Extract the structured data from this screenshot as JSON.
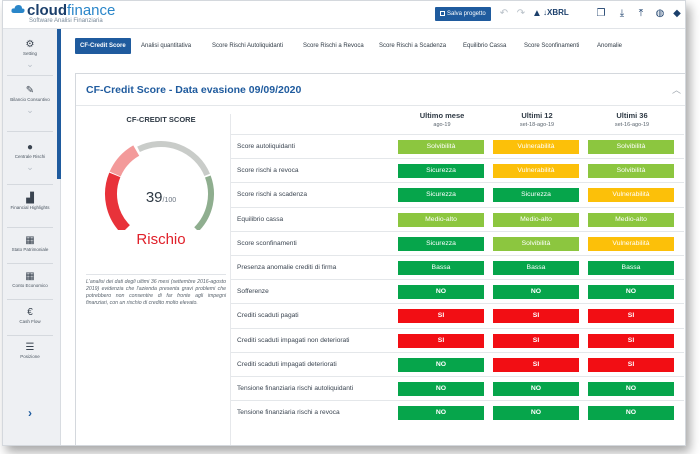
{
  "app": {
    "logo_bold": "cloud",
    "logo_light": "finance",
    "logo_sub": "Software Analisi Finanziaria"
  },
  "toolbar": {
    "save_label": "Salva progetto",
    "xbrl_label": "XBRL",
    "icons": [
      "undo-icon",
      "redo-icon",
      "warning-icon",
      "xbrl-icon",
      "copy-icon",
      "download-icon",
      "upload-icon",
      "globe-icon",
      "tag-icon"
    ]
  },
  "sidebar": {
    "items": [
      {
        "label": "Setting",
        "icon": "gears-icon"
      },
      {
        "label": "Bilancio Consuntivo",
        "icon": "pencil-icon"
      },
      {
        "label": "Centrale Rischi",
        "icon": "alert-icon"
      },
      {
        "label": "Financial Highlights",
        "icon": "bar-chart-icon"
      },
      {
        "label": "Stato Patrimoniale",
        "icon": "table-icon"
      },
      {
        "label": "Conto Economico",
        "icon": "table-icon"
      },
      {
        "label": "Cash Flow",
        "icon": "euro-icon"
      },
      {
        "label": "Posizione",
        "icon": "list-icon"
      }
    ]
  },
  "tabs": [
    {
      "label": "CF-Credit Score",
      "active": true
    },
    {
      "label": "Analisi quantitativa"
    },
    {
      "label": "Score Rischi Autoliquidanti"
    },
    {
      "label": "Score Rischi a Revoca"
    },
    {
      "label": "Score Rischi a Scadenza"
    },
    {
      "label": "Equilibrio Cassa"
    },
    {
      "label": "Score Sconfinamenti"
    },
    {
      "label": "Anomalie"
    }
  ],
  "panel": {
    "title": "CF-Credit Score - Data evasione  09/09/2020"
  },
  "score": {
    "title": "CF-CREDIT SCORE",
    "value": "39",
    "max": "/100",
    "label": "Rischio",
    "level": 39,
    "note": "L'analisi dei dati degli ultimi 36 mesi (settembre 2016-agosto 2019) evidenzia che l'azienda presenta gravi problemi che potrebbero non consentire di far fronte agli impegni finanziari, con un rischio di credito molto elevato."
  },
  "colors": {
    "green": "#06a54b",
    "light_green": "#8cc63f",
    "yellow": "#fcc009",
    "red": "#f20e14",
    "brand": "#1f5b9e"
  },
  "columns": [
    {
      "header": "Ultimo mese",
      "sub": "ago-19"
    },
    {
      "header": "Ultimi 12",
      "sub": "set-18-ago-19"
    },
    {
      "header": "Ultimi 36",
      "sub": "set-16-ago-19"
    }
  ],
  "rows": [
    {
      "label": "Score autoliquidanti",
      "cells": [
        {
          "text": "Solvibilità",
          "color": "#8cc63f"
        },
        {
          "text": "Vulnerabilità",
          "color": "#fcc009"
        },
        {
          "text": "Solvibilità",
          "color": "#8cc63f"
        }
      ]
    },
    {
      "label": "Score rischi a revoca",
      "cells": [
        {
          "text": "Sicurezza",
          "color": "#06a54b"
        },
        {
          "text": "Vulnerabilità",
          "color": "#fcc009"
        },
        {
          "text": "Solvibilità",
          "color": "#8cc63f"
        }
      ]
    },
    {
      "label": "Score rischi a scadenza",
      "cells": [
        {
          "text": "Sicurezza",
          "color": "#06a54b"
        },
        {
          "text": "Sicurezza",
          "color": "#06a54b"
        },
        {
          "text": "Vulnerabilità",
          "color": "#fcc009"
        }
      ]
    },
    {
      "label": "Equilibrio cassa",
      "cells": [
        {
          "text": "Medio-alto",
          "color": "#8cc63f"
        },
        {
          "text": "Medio-alto",
          "color": "#8cc63f"
        },
        {
          "text": "Medio-alto",
          "color": "#8cc63f"
        }
      ]
    },
    {
      "label": "Score sconfinamenti",
      "cells": [
        {
          "text": "Sicurezza",
          "color": "#06a54b"
        },
        {
          "text": "Solvibilità",
          "color": "#8cc63f"
        },
        {
          "text": "Vulnerabilità",
          "color": "#fcc009"
        }
      ]
    },
    {
      "label": "Presenza anomalie crediti di firma",
      "cells": [
        {
          "text": "Bassa",
          "color": "#06a54b"
        },
        {
          "text": "Bassa",
          "color": "#06a54b"
        },
        {
          "text": "Bassa",
          "color": "#06a54b"
        }
      ]
    },
    {
      "label": "Sofferenze",
      "cells": [
        {
          "text": "NO",
          "color": "#06a54b",
          "bold": true
        },
        {
          "text": "NO",
          "color": "#06a54b",
          "bold": true
        },
        {
          "text": "NO",
          "color": "#06a54b",
          "bold": true
        }
      ]
    },
    {
      "label": "Crediti scaduti pagati",
      "cells": [
        {
          "text": "SI",
          "color": "#f20e14",
          "bold": true
        },
        {
          "text": "SI",
          "color": "#f20e14",
          "bold": true
        },
        {
          "text": "SI",
          "color": "#f20e14",
          "bold": true
        }
      ]
    },
    {
      "label": "Crediti scaduti impagati non deteriorati",
      "cells": [
        {
          "text": "SI",
          "color": "#f20e14",
          "bold": true
        },
        {
          "text": "SI",
          "color": "#f20e14",
          "bold": true
        },
        {
          "text": "SI",
          "color": "#f20e14",
          "bold": true
        }
      ]
    },
    {
      "label": "Crediti scaduti impagati deteriorati",
      "cells": [
        {
          "text": "NO",
          "color": "#06a54b",
          "bold": true
        },
        {
          "text": "SI",
          "color": "#f20e14",
          "bold": true
        },
        {
          "text": "SI",
          "color": "#f20e14",
          "bold": true
        }
      ]
    },
    {
      "label": "Tensione finanziaria rischi autoliquidanti",
      "cells": [
        {
          "text": "NO",
          "color": "#06a54b",
          "bold": true
        },
        {
          "text": "NO",
          "color": "#06a54b",
          "bold": true
        },
        {
          "text": "NO",
          "color": "#06a54b",
          "bold": true
        }
      ]
    },
    {
      "label": "Tensione finanziaria rischi a revoca",
      "cells": [
        {
          "text": "NO",
          "color": "#06a54b",
          "bold": true
        },
        {
          "text": "NO",
          "color": "#06a54b",
          "bold": true
        },
        {
          "text": "NO",
          "color": "#06a54b",
          "bold": true
        }
      ]
    }
  ]
}
